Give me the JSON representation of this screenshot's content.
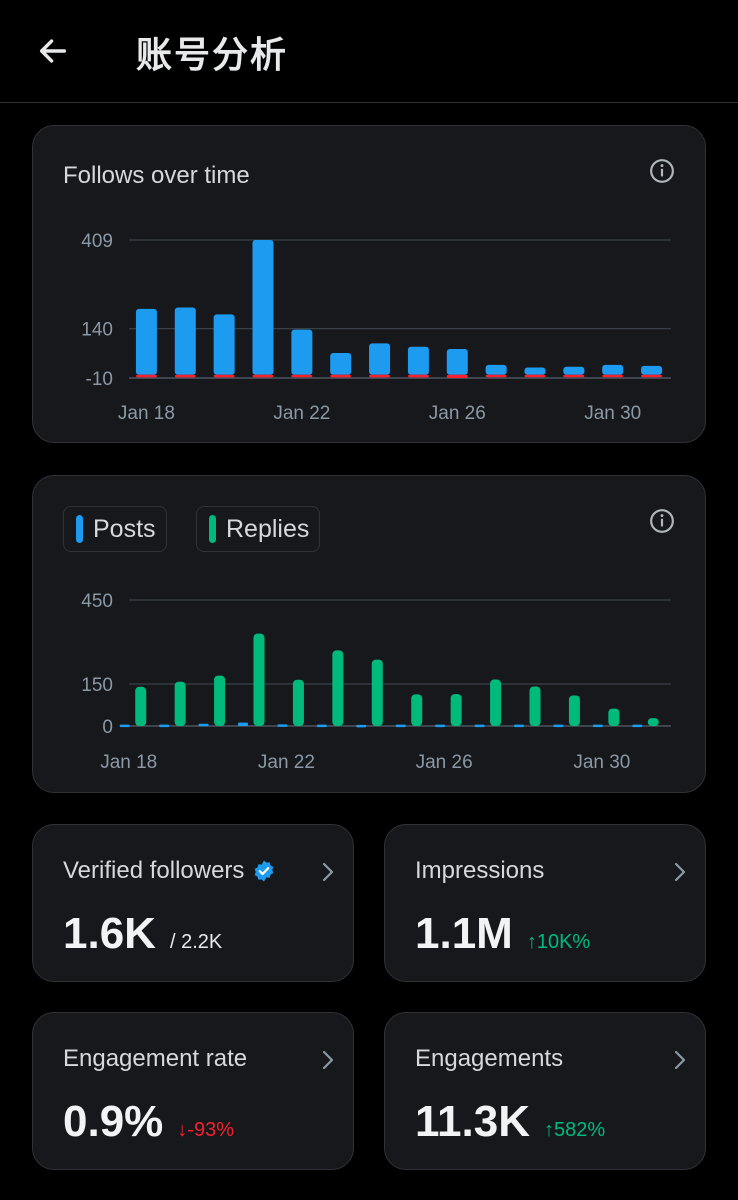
{
  "header": {
    "title": "账号分析",
    "back_icon": "arrow-left-icon"
  },
  "follows_card": {
    "title": "Follows over time",
    "info_icon": "info-icon",
    "chart_data": {
      "type": "bar",
      "title": "Follows over time",
      "x": [
        "Jan 18",
        "Jan 19",
        "Jan 20",
        "Jan 21",
        "Jan 22",
        "Jan 23",
        "Jan 24",
        "Jan 25",
        "Jan 26",
        "Jan 27",
        "Jan 28",
        "Jan 29",
        "Jan 30",
        "Jan 31"
      ],
      "x_tick_labels": [
        "Jan 18",
        "Jan 22",
        "Jan 26",
        "Jan 30"
      ],
      "y_tick_labels": [
        "409",
        "140",
        "-10"
      ],
      "ylim": [
        -10,
        409
      ],
      "series": [
        {
          "color": "#1d9bf0",
          "values": [
            200,
            204,
            183,
            409,
            137,
            66,
            95,
            85,
            78,
            30,
            22,
            24,
            30,
            27
          ]
        },
        {
          "color": "#f4212e",
          "values": [
            -8,
            -8,
            -8,
            -8,
            -6,
            -8,
            -8,
            -8,
            -10,
            -7,
            -7,
            -7,
            -7,
            -7
          ]
        }
      ],
      "grid": true
    }
  },
  "posts_card": {
    "legend": [
      {
        "label": "Posts",
        "color": "#1d9bf0"
      },
      {
        "label": "Replies",
        "color": "#00ba7c"
      }
    ],
    "info_icon": "info-icon",
    "chart_data": {
      "type": "bar",
      "x": [
        "Jan 18",
        "Jan 19",
        "Jan 20",
        "Jan 21",
        "Jan 22",
        "Jan 23",
        "Jan 24",
        "Jan 25",
        "Jan 26",
        "Jan 27",
        "Jan 28",
        "Jan 29",
        "Jan 30",
        "Jan 31"
      ],
      "x_tick_labels": [
        "Jan 18",
        "Jan 22",
        "Jan 26",
        "Jan 30"
      ],
      "y_tick_labels": [
        "450",
        "150",
        "0"
      ],
      "ylim": [
        0,
        450
      ],
      "series": [
        {
          "name": "Posts",
          "color": "#1d9bf0",
          "values": [
            5,
            5,
            8,
            12,
            6,
            5,
            4,
            5,
            5,
            5,
            5,
            5,
            5,
            5
          ]
        },
        {
          "name": "Replies",
          "color": "#00ba7c",
          "values": [
            140,
            158,
            180,
            330,
            165,
            270,
            237,
            113,
            114,
            166,
            141,
            109,
            62,
            28
          ]
        }
      ],
      "grid": true
    }
  },
  "stats": [
    {
      "label": "Verified followers",
      "value": "1.6K",
      "sub": "/ 2.2K",
      "sub_color": "#e7e9ea",
      "badge_icon": "verified-badge-icon"
    },
    {
      "label": "Impressions",
      "value": "1.1M",
      "sub": "↑10K%",
      "sub_color": "#00ba7c"
    },
    {
      "label": "Engagement rate",
      "value": "0.9%",
      "sub": "↓-93%",
      "sub_color": "#f4212e"
    },
    {
      "label": "Engagements",
      "value": "11.3K",
      "sub": "↑582%",
      "sub_color": "#00ba7c"
    }
  ],
  "chevron_icon": "chevron-right-icon"
}
